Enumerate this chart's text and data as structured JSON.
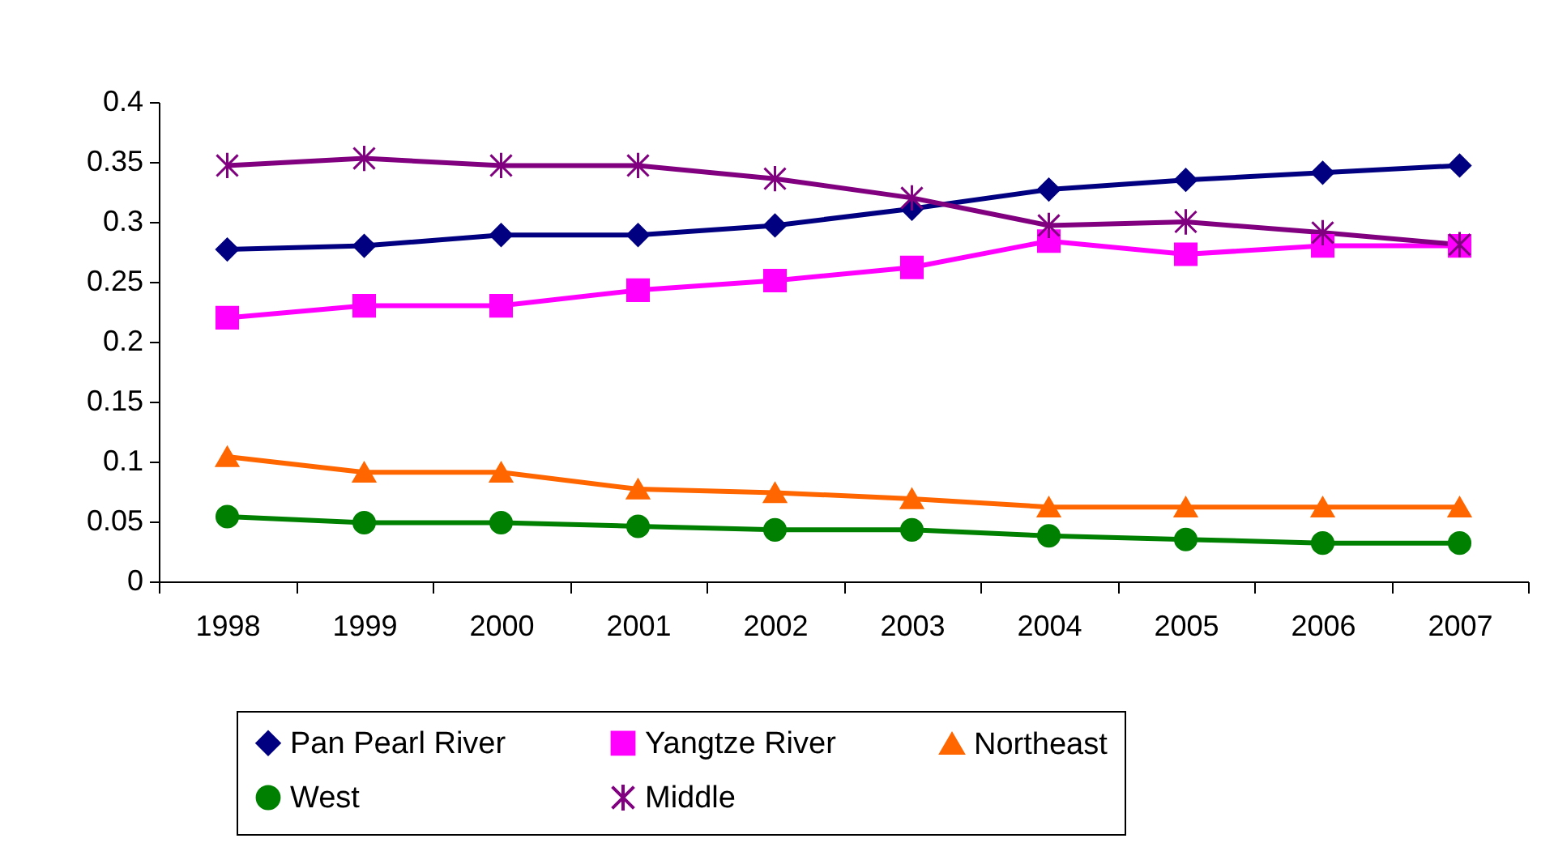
{
  "chart_data": {
    "type": "line",
    "categories": [
      "1998",
      "1999",
      "2000",
      "2001",
      "2002",
      "2003",
      "2004",
      "2005",
      "2006",
      "2007"
    ],
    "series": [
      {
        "name": "Pan Pearl River",
        "color": "#000080",
        "marker": "diamond",
        "values": [
          0.277,
          0.28,
          0.289,
          0.289,
          0.297,
          0.311,
          0.327,
          0.335,
          0.341,
          0.347
        ]
      },
      {
        "name": "Yangtze River",
        "color": "#ff00ff",
        "marker": "square",
        "values": [
          0.22,
          0.23,
          0.23,
          0.243,
          0.251,
          0.262,
          0.284,
          0.273,
          0.28,
          0.28
        ]
      },
      {
        "name": "Northeast",
        "color": "#ff6600",
        "marker": "triangle",
        "values": [
          0.104,
          0.091,
          0.091,
          0.077,
          0.074,
          0.069,
          0.062,
          0.062,
          0.062,
          0.062
        ]
      },
      {
        "name": "West",
        "color": "#008000",
        "marker": "circle",
        "values": [
          0.054,
          0.049,
          0.049,
          0.046,
          0.043,
          0.043,
          0.038,
          0.035,
          0.032,
          0.032
        ]
      },
      {
        "name": "Middle",
        "color": "#800080",
        "marker": "cross",
        "values": [
          0.347,
          0.353,
          0.347,
          0.347,
          0.336,
          0.32,
          0.297,
          0.3,
          0.291,
          0.281
        ]
      }
    ],
    "ylim": [
      0,
      0.4
    ],
    "yticks": [
      0,
      0.05,
      0.1,
      0.15,
      0.2,
      0.25,
      0.3,
      0.35,
      0.4
    ],
    "grid": false,
    "legend": "bottom",
    "line_style": "solid"
  }
}
